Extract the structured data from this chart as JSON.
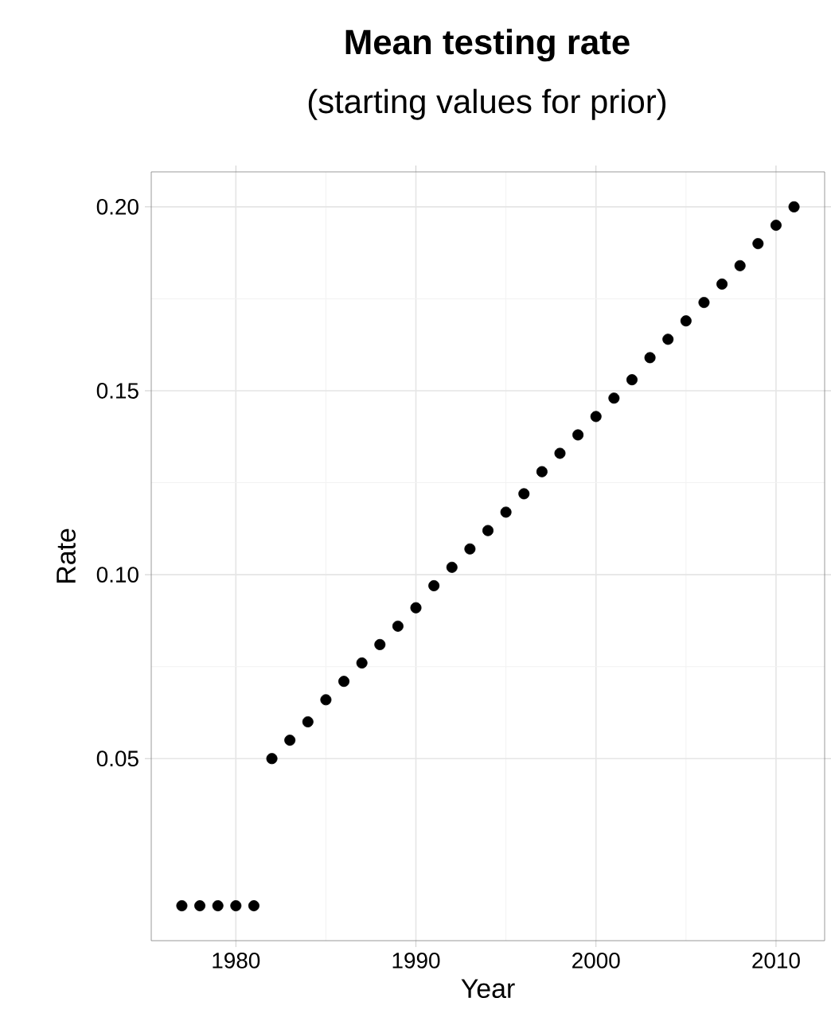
{
  "chart_data": {
    "type": "scatter",
    "title": "Mean testing rate",
    "subtitle": "(starting values for prior)",
    "xlabel": "Year",
    "ylabel": "Rate",
    "x": [
      1977,
      1978,
      1979,
      1980,
      1981,
      1982,
      1983,
      1984,
      1985,
      1986,
      1987,
      1988,
      1989,
      1990,
      1991,
      1992,
      1993,
      1994,
      1995,
      1996,
      1997,
      1998,
      1999,
      2000,
      2001,
      2002,
      2003,
      2004,
      2005,
      2006,
      2007,
      2008,
      2009,
      2010,
      2011
    ],
    "values": [
      0.01,
      0.01,
      0.01,
      0.01,
      0.01,
      0.05,
      0.055,
      0.06,
      0.066,
      0.071,
      0.076,
      0.081,
      0.086,
      0.091,
      0.097,
      0.102,
      0.107,
      0.112,
      0.117,
      0.122,
      0.128,
      0.133,
      0.138,
      0.143,
      0.148,
      0.153,
      0.159,
      0.164,
      0.169,
      0.174,
      0.179,
      0.184,
      0.19,
      0.195,
      0.2
    ],
    "color": "#000000",
    "marker": "circle",
    "xlim": [
      1975.3,
      2012.7
    ],
    "ylim": [
      0.0005,
      0.2095
    ],
    "xticks": [
      1980,
      1990,
      2000,
      2010
    ],
    "yticks": [
      {
        "value": 0.05,
        "label": "0.05"
      },
      {
        "value": 0.1,
        "label": "0.10"
      },
      {
        "value": 0.15,
        "label": "0.15"
      },
      {
        "value": 0.2,
        "label": "0.20"
      }
    ],
    "grid": true
  }
}
